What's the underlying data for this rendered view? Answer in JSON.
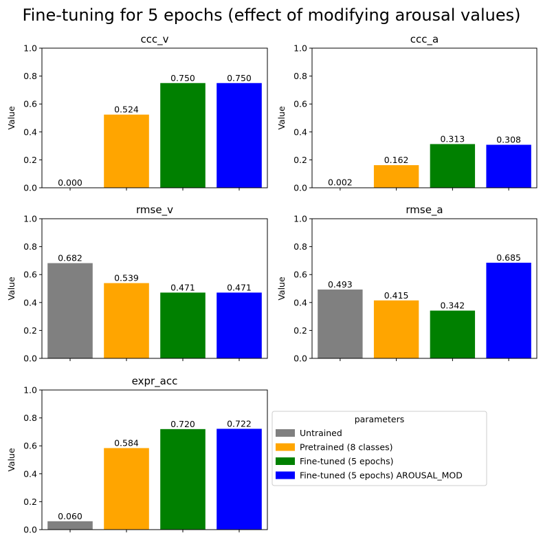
{
  "figure": {
    "title": "Fine-tuning for 5 epochs (effect of modifying arousal values)"
  },
  "legend": {
    "title": "parameters",
    "placement": "right of bottom-left panel",
    "entries": [
      {
        "label": "Untrained",
        "color": "#808080"
      },
      {
        "label": "Pretrained (8 classes)",
        "color": "#ffa500"
      },
      {
        "label": "Fine-tuned (5 epochs)",
        "color": "#008000"
      },
      {
        "label": "Fine-tuned (5 epochs) AROUSAL_MOD",
        "color": "#0000ff"
      }
    ]
  },
  "chart_data": [
    {
      "type": "bar",
      "title": "ccc_v",
      "xlabel": "",
      "ylabel": "Value",
      "ylim": [
        0,
        1
      ],
      "yticks": [
        "0.0",
        "0.2",
        "0.4",
        "0.6",
        "0.8",
        "1.0"
      ],
      "categories": [
        "Untrained",
        "Pretrained (8 classes)",
        "Fine-tuned (5 epochs)",
        "Fine-tuned (5 epochs) AROUSAL_MOD"
      ],
      "values": [
        0.0,
        0.524,
        0.75,
        0.75
      ],
      "labels": [
        "0.000",
        "0.524",
        "0.750",
        "0.750"
      ],
      "grid": false
    },
    {
      "type": "bar",
      "title": "ccc_a",
      "xlabel": "",
      "ylabel": "Value",
      "ylim": [
        0,
        1
      ],
      "yticks": [
        "0.0",
        "0.2",
        "0.4",
        "0.6",
        "0.8",
        "1.0"
      ],
      "categories": [
        "Untrained",
        "Pretrained (8 classes)",
        "Fine-tuned (5 epochs)",
        "Fine-tuned (5 epochs) AROUSAL_MOD"
      ],
      "values": [
        0.002,
        0.162,
        0.313,
        0.308
      ],
      "labels": [
        "0.002",
        "0.162",
        "0.313",
        "0.308"
      ],
      "grid": false
    },
    {
      "type": "bar",
      "title": "rmse_v",
      "xlabel": "",
      "ylabel": "Value",
      "ylim": [
        0,
        1
      ],
      "yticks": [
        "0.0",
        "0.2",
        "0.4",
        "0.6",
        "0.8",
        "1.0"
      ],
      "categories": [
        "Untrained",
        "Pretrained (8 classes)",
        "Fine-tuned (5 epochs)",
        "Fine-tuned (5 epochs) AROUSAL_MOD"
      ],
      "values": [
        0.682,
        0.539,
        0.471,
        0.471
      ],
      "labels": [
        "0.682",
        "0.539",
        "0.471",
        "0.471"
      ],
      "grid": false
    },
    {
      "type": "bar",
      "title": "rmse_a",
      "xlabel": "",
      "ylabel": "Value",
      "ylim": [
        0,
        1
      ],
      "yticks": [
        "0.0",
        "0.2",
        "0.4",
        "0.6",
        "0.8",
        "1.0"
      ],
      "categories": [
        "Untrained",
        "Pretrained (8 classes)",
        "Fine-tuned (5 epochs)",
        "Fine-tuned (5 epochs) AROUSAL_MOD"
      ],
      "values": [
        0.493,
        0.415,
        0.342,
        0.685
      ],
      "labels": [
        "0.493",
        "0.415",
        "0.342",
        "0.685"
      ],
      "grid": false
    },
    {
      "type": "bar",
      "title": "expr_acc",
      "xlabel": "",
      "ylabel": "Value",
      "ylim": [
        0,
        1
      ],
      "yticks": [
        "0.0",
        "0.2",
        "0.4",
        "0.6",
        "0.8",
        "1.0"
      ],
      "categories": [
        "Untrained",
        "Pretrained (8 classes)",
        "Fine-tuned (5 epochs)",
        "Fine-tuned (5 epochs) AROUSAL_MOD"
      ],
      "values": [
        0.06,
        0.584,
        0.72,
        0.722
      ],
      "labels": [
        "0.060",
        "0.584",
        "0.720",
        "0.722"
      ],
      "grid": false
    }
  ]
}
